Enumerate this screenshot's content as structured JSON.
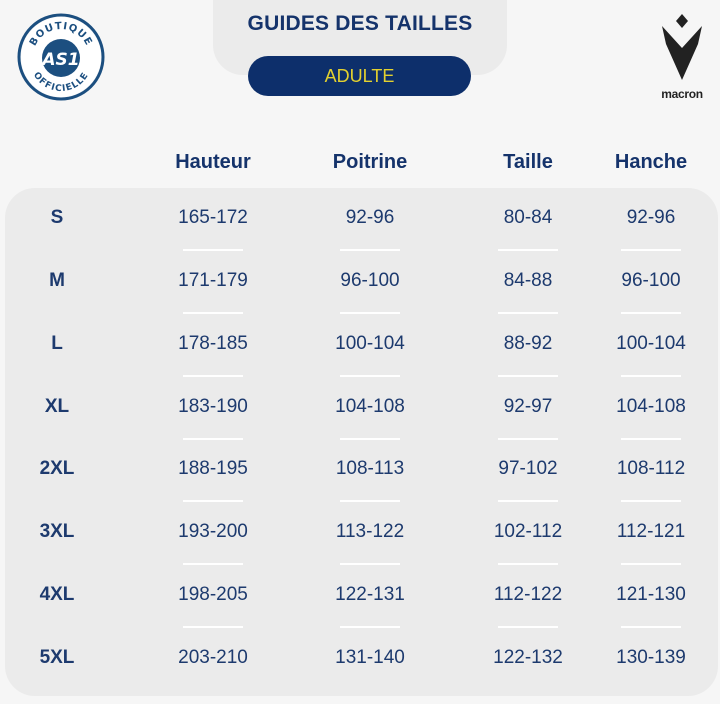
{
  "header": {
    "title": "GUIDES DES TAILLES",
    "category_button": "ADULTE",
    "left_logo_text": "BOUTIQUE OFFICIELLE AS1",
    "right_logo_text": "macron"
  },
  "colors": {
    "navy": "#0d2f6b",
    "accent_yellow": "#e3d12f",
    "panel": "#ebebeb"
  },
  "table": {
    "columns": [
      "",
      "Hauteur",
      "Poitrine",
      "Taille",
      "Hanche"
    ],
    "rows": [
      [
        "S",
        "165-172",
        "92-96",
        "80-84",
        "92-96"
      ],
      [
        "M",
        "171-179",
        "96-100",
        "84-88",
        "96-100"
      ],
      [
        "L",
        "178-185",
        "100-104",
        "88-92",
        "100-104"
      ],
      [
        "XL",
        "183-190",
        "104-108",
        "92-97",
        "104-108"
      ],
      [
        "2XL",
        "188-195",
        "108-113",
        "97-102",
        "108-112"
      ],
      [
        "3XL",
        "193-200",
        "113-122",
        "102-112",
        "112-121"
      ],
      [
        "4XL",
        "198-205",
        "122-131",
        "112-122",
        "121-130"
      ],
      [
        "5XL",
        "203-210",
        "131-140",
        "122-132",
        "130-139"
      ]
    ]
  }
}
